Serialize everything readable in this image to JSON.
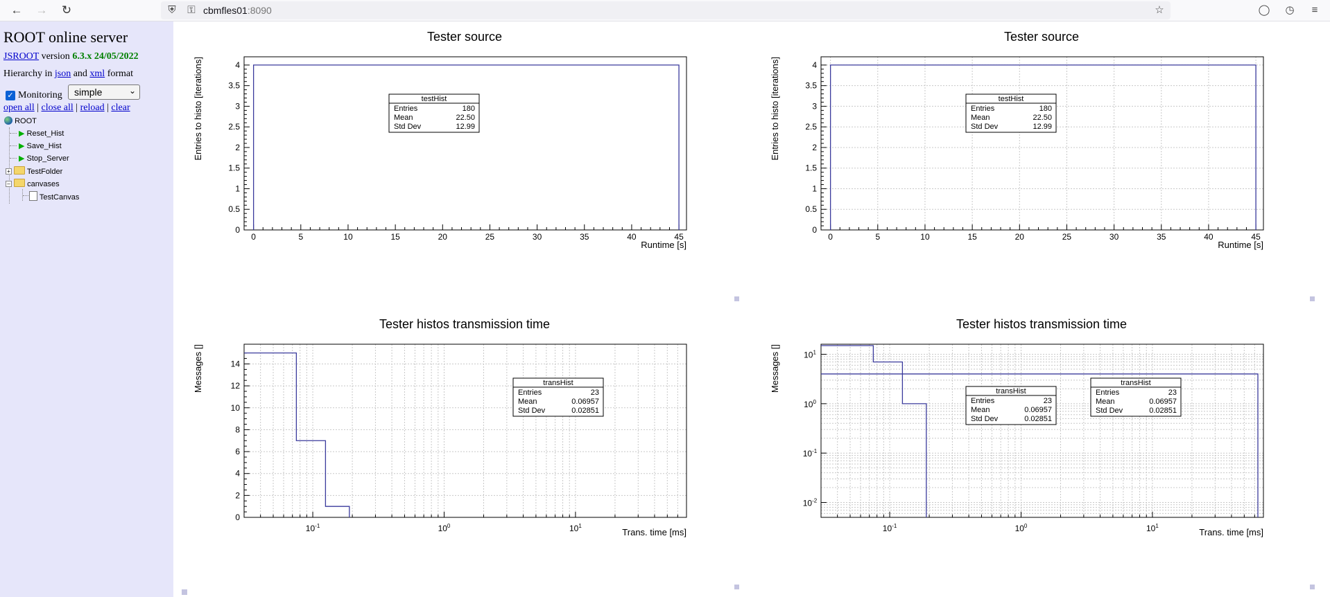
{
  "browser": {
    "url_host": "cbmfles01",
    "url_port": ":8090",
    "icons": [
      "back-arrow-icon",
      "forward-arrow-icon",
      "reload-icon",
      "shield-icon",
      "lock-icon",
      "star-icon",
      "pocket-icon",
      "history-icon",
      "menu-icon"
    ]
  },
  "sidebar": {
    "title": "ROOT online server",
    "jsroot_link": "JSROOT",
    "version_word": "version",
    "version": "6.3.x 24/05/2022",
    "hierarchy_prefix": "Hierarchy in",
    "json_link": "json",
    "and_word": "and",
    "xml_link": "xml",
    "format_word": "format",
    "monitoring_label": "Monitoring",
    "monitoring_checked": true,
    "monitoring_mode": "simple",
    "actions": [
      "open all",
      "close all",
      "reload",
      "clear"
    ],
    "tree": {
      "root": "ROOT",
      "commands": [
        "Reset_Hist",
        "Save_Hist",
        "Stop_Server"
      ],
      "folders": [
        "TestFolder",
        "canvases"
      ],
      "canvas_item": "TestCanvas"
    }
  },
  "panels": [
    {
      "title": "Tester source"
    },
    {
      "title": "Tester source"
    },
    {
      "title": "Tester histos transmission time"
    },
    {
      "title": "Tester histos transmission time"
    }
  ],
  "stats": {
    "testHist": {
      "name": "testHist",
      "rows": [
        [
          "Entries",
          "180"
        ],
        [
          "Mean",
          "22.50"
        ],
        [
          "Std Dev",
          "12.99"
        ]
      ]
    },
    "transHist": {
      "name": "transHist",
      "rows": [
        [
          "Entries",
          "23"
        ],
        [
          "Mean",
          "0.06957"
        ],
        [
          "Std Dev",
          "0.02851"
        ]
      ]
    }
  },
  "chart_data": [
    {
      "type": "line",
      "title": "Tester source",
      "xlabel": "Runtime [s]",
      "ylabel": "Entries to histo [iterations]",
      "xlim": [
        -1,
        45.8
      ],
      "ylim": [
        0,
        4.2
      ],
      "xticks": [
        0,
        5,
        10,
        15,
        20,
        25,
        30,
        35,
        40,
        45
      ],
      "yticks": [
        0,
        0.5,
        1,
        1.5,
        2,
        2.5,
        3,
        3.5,
        4
      ],
      "ytick_labels": [
        "0",
        "0.5",
        "1",
        "1.5",
        "2",
        "2.5",
        "3",
        "3.5",
        "4"
      ],
      "grid": false,
      "step": {
        "x": [
          0,
          45
        ],
        "y": 4
      },
      "color": "#3a3a9c"
    },
    {
      "type": "line",
      "title": "Tester source",
      "xlabel": "Runtime [s]",
      "ylabel": "Entries to histo [iterations]",
      "xlim": [
        -1,
        45.8
      ],
      "ylim": [
        0,
        4.2
      ],
      "xticks": [
        0,
        5,
        10,
        15,
        20,
        25,
        30,
        35,
        40,
        45
      ],
      "yticks": [
        0,
        0.5,
        1,
        1.5,
        2,
        2.5,
        3,
        3.5,
        4
      ],
      "ytick_labels": [
        "0",
        "0.5",
        "1",
        "1.5",
        "2",
        "2.5",
        "3",
        "3.5",
        "4"
      ],
      "grid": true,
      "step": {
        "x": [
          0,
          45
        ],
        "y": 4
      },
      "color": "#3a3a9c"
    },
    {
      "type": "line",
      "title": "Tester histos transmission time",
      "xlabel": "Trans. time [ms]",
      "ylabel": "Messages []",
      "xscale": "log",
      "xlim": [
        0.03,
        70
      ],
      "ylim": [
        0,
        15.8
      ],
      "yticks": [
        0,
        2,
        4,
        6,
        8,
        10,
        12,
        14
      ],
      "ytick_labels": [
        "0",
        "2",
        "4",
        "6",
        "8",
        "10",
        "12",
        "14"
      ],
      "grid": true,
      "bins": [
        {
          "x0": 0.03,
          "x1": 0.075,
          "y": 15
        },
        {
          "x0": 0.075,
          "x1": 0.125,
          "y": 7
        },
        {
          "x0": 0.125,
          "x1": 0.19,
          "y": 1
        }
      ],
      "color": "#3a3a9c"
    },
    {
      "type": "line",
      "title": "Tester histos transmission time",
      "xlabel": "Trans. time [ms]",
      "ylabel": "Messages []",
      "xscale": "log",
      "yscale": "log",
      "xlim": [
        0.03,
        70
      ],
      "ylim": [
        0.005,
        16
      ],
      "yticks": [
        0.01,
        0.1,
        1,
        10
      ],
      "grid": true,
      "bins": [
        {
          "x0": 0.03,
          "x1": 0.075,
          "y": 15
        },
        {
          "x0": 0.075,
          "x1": 0.125,
          "y": 7
        },
        {
          "x0": 0.125,
          "x1": 0.19,
          "y": 1
        }
      ],
      "flat_line": 4,
      "color": "#3a3a9c"
    }
  ]
}
